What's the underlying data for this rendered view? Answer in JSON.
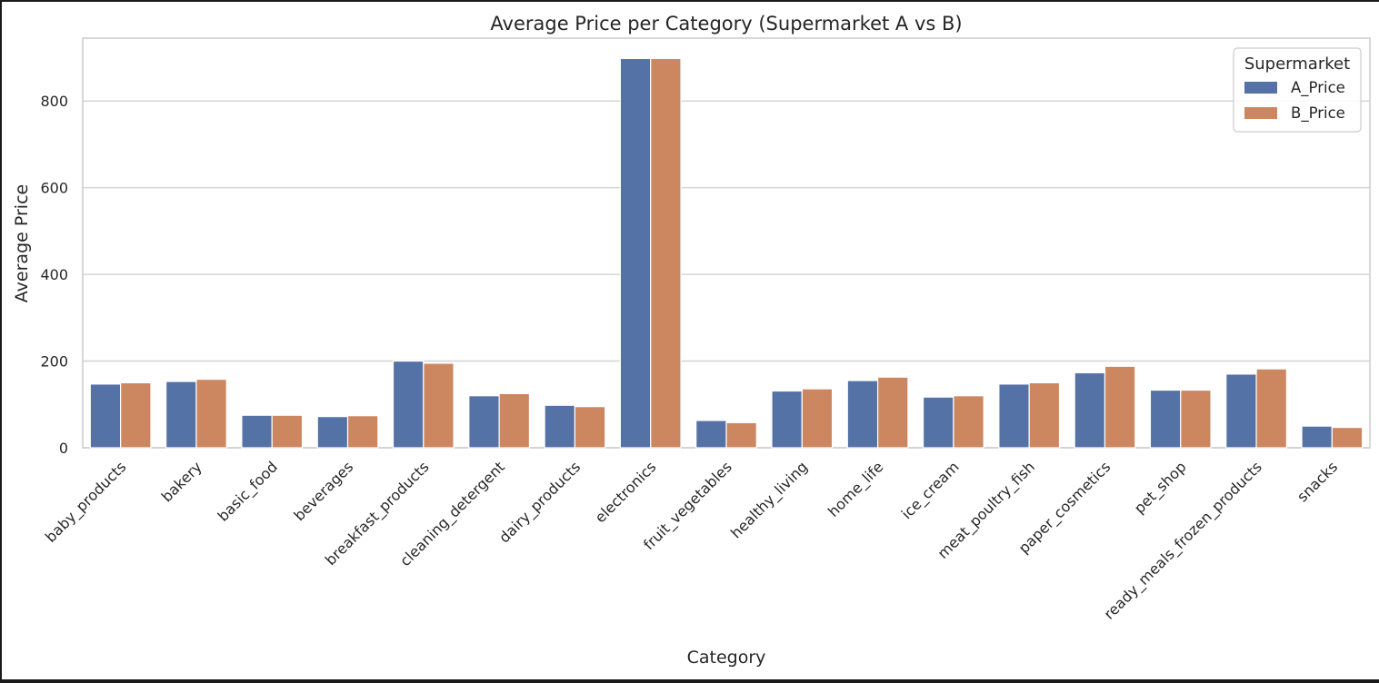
{
  "chart_data": {
    "type": "bar",
    "title": "Average Price per Category (Supermarket A vs B)",
    "xlabel": "Category",
    "ylabel": "Average Price",
    "ylim": [
      0,
      945
    ],
    "yticks": [
      0,
      200,
      400,
      600,
      800
    ],
    "grid": true,
    "legend": {
      "title": "Supermarket",
      "placement": "top-right"
    },
    "categories": [
      "baby_products",
      "bakery",
      "basic_food",
      "beverages",
      "breakfast_products",
      "cleaning_detergent",
      "dairy_products",
      "electronics",
      "fruit_vegetables",
      "healthy_living",
      "home_life",
      "ice_cream",
      "meat_poultry_fish",
      "paper_cosmetics",
      "pet_shop",
      "ready_meals_frozen_products",
      "snacks"
    ],
    "series": [
      {
        "name": "A_Price",
        "color": "#5572a6",
        "values": [
          147,
          153,
          75,
          72,
          200,
          120,
          98,
          898,
          63,
          131,
          155,
          117,
          147,
          173,
          133,
          170,
          50
        ]
      },
      {
        "name": "B_Price",
        "color": "#cc8761",
        "values": [
          150,
          158,
          75,
          74,
          195,
          125,
          95,
          898,
          58,
          136,
          163,
          120,
          150,
          188,
          133,
          182,
          47
        ]
      }
    ]
  }
}
